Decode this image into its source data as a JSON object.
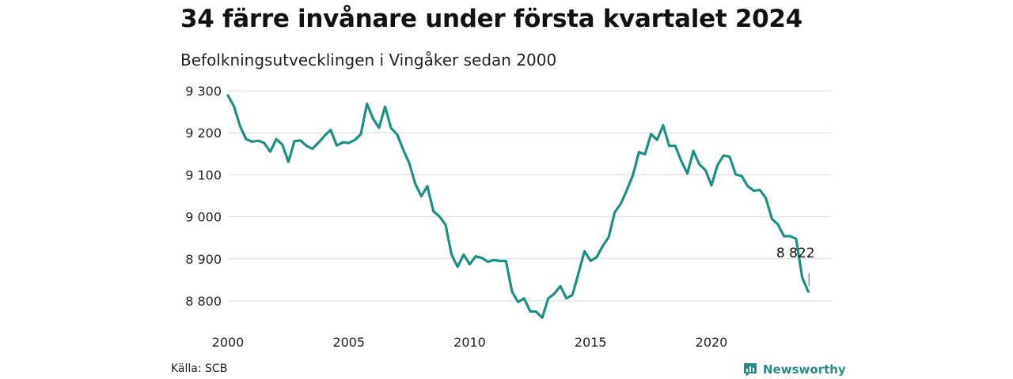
{
  "header": {
    "title": "34 färre invånare under första kvartalet 2024",
    "subtitle": "Befolkningsutvecklingen i Vingåker sedan 2000"
  },
  "footer": {
    "source": "Källa: SCB",
    "brand": "Newsworthy",
    "brand_icon": "newsworthy-logo-icon"
  },
  "chart_data": {
    "type": "line",
    "title": "34 färre invånare under första kvartalet 2024",
    "subtitle": "Befolkningsutvecklingen i Vingåker sedan 2000",
    "xlabel": "",
    "ylabel": "",
    "xlim": [
      2000,
      2024.25
    ],
    "ylim": [
      8780,
      9310
    ],
    "x_ticks": [
      2000,
      2005,
      2010,
      2015,
      2020
    ],
    "y_ticks": [
      8800,
      8900,
      9000,
      9100,
      9200,
      9300
    ],
    "y_tick_labels": [
      "8 800",
      "8 900",
      "9 000",
      "9 100",
      "9 200",
      "9 300"
    ],
    "grid": true,
    "line_color": "#1b9183",
    "annotation": {
      "text": "8 822",
      "x": 2024.0,
      "y": 8822
    },
    "series": [
      {
        "x": [
          2000.0,
          2000.25,
          2000.5,
          2000.75,
          2001.0,
          2001.25,
          2001.5,
          2001.75,
          2002.0,
          2002.25,
          2002.5,
          2002.75,
          2003.0,
          2003.25,
          2003.5,
          2003.75,
          2004.0,
          2004.25,
          2004.5,
          2004.75,
          2005.0,
          2005.25,
          2005.5,
          2005.75,
          2006.0,
          2006.25,
          2006.5,
          2006.75,
          2007.0,
          2007.25,
          2007.5,
          2007.75,
          2008.0,
          2008.25,
          2008.5,
          2008.75,
          2009.0,
          2009.25,
          2009.5,
          2009.75,
          2010.0,
          2010.25,
          2010.5,
          2010.75,
          2011.0,
          2011.25,
          2011.5,
          2011.75,
          2012.0,
          2012.25,
          2012.5,
          2012.75,
          2013.0,
          2013.25,
          2013.5,
          2013.75,
          2014.0,
          2014.25,
          2014.5,
          2014.75,
          2015.0,
          2015.25,
          2015.5,
          2015.75,
          2016.0,
          2016.25,
          2016.5,
          2016.75,
          2017.0,
          2017.25,
          2017.5,
          2017.75,
          2018.0,
          2018.25,
          2018.5,
          2018.75,
          2019.0,
          2019.25,
          2019.5,
          2019.75,
          2020.0,
          2020.25,
          2020.5,
          2020.75,
          2021.0,
          2021.25,
          2021.5,
          2021.75,
          2022.0,
          2022.25,
          2022.5,
          2022.75,
          2023.0,
          2023.25,
          2023.5,
          2023.75,
          2024.0
        ],
        "values": [
          9289,
          9263,
          9216,
          9185,
          9179,
          9181,
          9176,
          9155,
          9185,
          9172,
          9131,
          9180,
          9182,
          9169,
          9162,
          9177,
          9193,
          9207,
          9170,
          9177,
          9176,
          9183,
          9197,
          9269,
          9234,
          9212,
          9262,
          9211,
          9196,
          9160,
          9128,
          9078,
          9049,
          9073,
          9013,
          9001,
          8981,
          8910,
          8881,
          8910,
          8887,
          8906,
          8902,
          8893,
          8897,
          8895,
          8895,
          8822,
          8797,
          8806,
          8775,
          8774,
          8760,
          8806,
          8817,
          8835,
          8806,
          8814,
          8866,
          8918,
          8895,
          8904,
          8930,
          8952,
          9011,
          9031,
          9064,
          9099,
          9154,
          9149,
          9197,
          9183,
          9218,
          9169,
          9169,
          9133,
          9103,
          9157,
          9125,
          9111,
          9075,
          9123,
          9146,
          9143,
          9101,
          9097,
          9073,
          9062,
          9064,
          9045,
          8995,
          8982,
          8954,
          8954,
          8948,
          8856,
          8822
        ]
      }
    ]
  }
}
